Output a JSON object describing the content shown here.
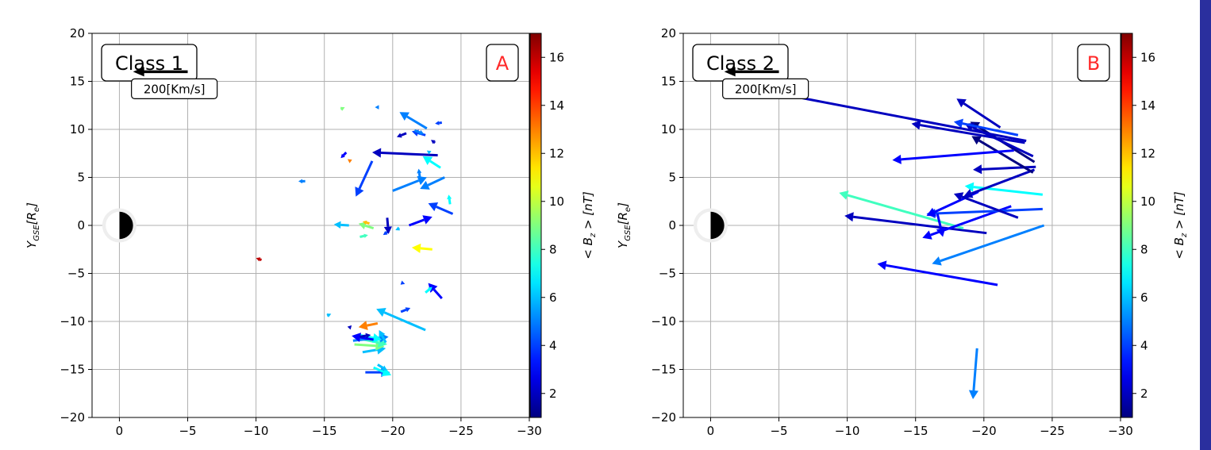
{
  "page": {
    "edge_color": "#2a2f9e"
  },
  "chart_data": [
    {
      "type": "scatter",
      "subtype": "quiver",
      "class_label": "Class 1",
      "panel_letter": "A",
      "ylabel": "Y_GSE[R_e]",
      "xlim": [
        2,
        -30
      ],
      "ylim": [
        20,
        -20
      ],
      "xticks": [
        0,
        -5,
        -10,
        -15,
        -20,
        -25,
        -30
      ],
      "yticks": [
        -20,
        -15,
        -10,
        -5,
        0,
        5,
        10,
        15,
        20
      ],
      "xtick_labels": [
        "0",
        "−5",
        "−10",
        "−15",
        "−20",
        "−25",
        "−30"
      ],
      "ytick_labels": [
        "−20",
        "−15",
        "−10",
        "−5",
        "0",
        "5",
        "10",
        "15",
        "20"
      ],
      "grid": true,
      "colorbar": {
        "label": "< B_z > [nT]",
        "range": [
          1,
          17
        ],
        "ticks": [
          2,
          4,
          6,
          8,
          10,
          12,
          14,
          16
        ],
        "tick_labels": [
          "2",
          "4",
          "6",
          "8",
          "10",
          "12",
          "14",
          "16"
        ],
        "colormap": "jet"
      },
      "reference_arrow": {
        "label": "200[Km/s]",
        "x0": -5,
        "x1": -1,
        "y": 16
      },
      "earth": {
        "x": 0,
        "y": 0,
        "radius": 1
      },
      "vectors": [
        {
          "x": -18.0,
          "y": -15.3,
          "x2": -19.8,
          "y2": -15.3,
          "bz": 4
        },
        {
          "x": -18.6,
          "y": -14.8,
          "x2": -19.9,
          "y2": -15.6,
          "bz": 7
        },
        {
          "x": -18.9,
          "y": -14.5,
          "x2": -19.6,
          "y2": -15.1,
          "bz": 6
        },
        {
          "x": -17.8,
          "y": -13.2,
          "x2": -19.5,
          "y2": -12.8,
          "bz": 6
        },
        {
          "x": -17.2,
          "y": -12.4,
          "x2": -19.4,
          "y2": -12.6,
          "bz": 9
        },
        {
          "x": -17.6,
          "y": -11.8,
          "x2": -19.6,
          "y2": -12.4,
          "bz": 8
        },
        {
          "x": -17.1,
          "y": -12.0,
          "x2": -19.7,
          "y2": -11.6,
          "bz": 5
        },
        {
          "x": -17.5,
          "y": -11.4,
          "x2": -19.2,
          "y2": -11.9,
          "bz": 7
        },
        {
          "x": -18.6,
          "y": -11.9,
          "x2": -17.0,
          "y2": -11.5,
          "bz": 3
        },
        {
          "x": -17.6,
          "y": -11.6,
          "x2": -18.4,
          "y2": -11.4,
          "bz": 2
        },
        {
          "x": -16.8,
          "y": -10.7,
          "x2": -17.0,
          "y2": -10.4,
          "bz": 2
        },
        {
          "x": -18.9,
          "y": -10.2,
          "x2": -17.5,
          "y2": -10.6,
          "bz": 13
        },
        {
          "x": -19.5,
          "y": -12.2,
          "x2": -19.0,
          "y2": -10.9,
          "bz": 6
        },
        {
          "x": -22.4,
          "y": -10.9,
          "x2": -18.8,
          "y2": -8.7,
          "bz": 6
        },
        {
          "x": -20.6,
          "y": -9.0,
          "x2": -21.3,
          "y2": -8.6,
          "bz": 4
        },
        {
          "x": -15.2,
          "y": -9.4,
          "x2": -15.5,
          "y2": -9.2,
          "bz": 6
        },
        {
          "x": -23.6,
          "y": -7.6,
          "x2": -22.6,
          "y2": -6.0,
          "bz": 3
        },
        {
          "x": -22.4,
          "y": -7.0,
          "x2": -22.9,
          "y2": -6.4,
          "bz": 7
        },
        {
          "x": -20.7,
          "y": -6.0,
          "x2": -20.9,
          "y2": -6.1,
          "bz": 4
        },
        {
          "x": -10.4,
          "y": -3.6,
          "x2": -10.0,
          "y2": -3.4,
          "bz": 16
        },
        {
          "x": -22.9,
          "y": -2.5,
          "x2": -21.4,
          "y2": -2.3,
          "bz": 11
        },
        {
          "x": -17.6,
          "y": -1.2,
          "x2": -18.2,
          "y2": -1.0,
          "bz": 8
        },
        {
          "x": -16.8,
          "y": 0.0,
          "x2": -15.7,
          "y2": 0.1,
          "bz": 6
        },
        {
          "x": -18.6,
          "y": -0.3,
          "x2": -17.5,
          "y2": 0.2,
          "bz": 9
        },
        {
          "x": -18.3,
          "y": 0.2,
          "x2": -17.8,
          "y2": 0.4,
          "bz": 12
        },
        {
          "x": -19.7,
          "y": -0.6,
          "x2": -19.3,
          "y2": -1.0,
          "bz": 4
        },
        {
          "x": -19.6,
          "y": 0.8,
          "x2": -19.7,
          "y2": -0.9,
          "bz": 2
        },
        {
          "x": -20.5,
          "y": -0.3,
          "x2": -20.2,
          "y2": -0.5,
          "bz": 6
        },
        {
          "x": -21.2,
          "y": 0.0,
          "x2": -22.9,
          "y2": 0.9,
          "bz": 3
        },
        {
          "x": -24.4,
          "y": 1.2,
          "x2": -22.6,
          "y2": 2.3,
          "bz": 4
        },
        {
          "x": -24.2,
          "y": 2.2,
          "x2": -24.1,
          "y2": 3.2,
          "bz": 7
        },
        {
          "x": -20.0,
          "y": 3.6,
          "x2": -22.5,
          "y2": 5.0,
          "bz": 5
        },
        {
          "x": -23.8,
          "y": 5.0,
          "x2": -22.0,
          "y2": 3.8,
          "bz": 5
        },
        {
          "x": -18.5,
          "y": 6.7,
          "x2": -17.3,
          "y2": 3.0,
          "bz": 4
        },
        {
          "x": -13.6,
          "y": 4.6,
          "x2": -13.1,
          "y2": 4.6,
          "bz": 5
        },
        {
          "x": -22.0,
          "y": 4.9,
          "x2": -21.9,
          "y2": 5.9,
          "bz": 5
        },
        {
          "x": -16.6,
          "y": 7.6,
          "x2": -16.2,
          "y2": 7.0,
          "bz": 3
        },
        {
          "x": -16.9,
          "y": 6.7,
          "x2": -16.7,
          "y2": 6.9,
          "bz": 13
        },
        {
          "x": -23.5,
          "y": 6.0,
          "x2": -22.2,
          "y2": 7.2,
          "bz": 7
        },
        {
          "x": -23.3,
          "y": 7.3,
          "x2": -18.5,
          "y2": 7.6,
          "bz": 2
        },
        {
          "x": -22.7,
          "y": 7.6,
          "x2": -22.5,
          "y2": 7.8,
          "bz": 6
        },
        {
          "x": -21.0,
          "y": 9.6,
          "x2": -20.3,
          "y2": 9.2,
          "bz": 2
        },
        {
          "x": -22.4,
          "y": 9.4,
          "x2": -21.4,
          "y2": 9.8,
          "bz": 4
        },
        {
          "x": -21.6,
          "y": 9.9,
          "x2": -22.3,
          "y2": 9.5,
          "bz": 5
        },
        {
          "x": -22.5,
          "y": 10.1,
          "x2": -20.5,
          "y2": 11.8,
          "bz": 5
        },
        {
          "x": -23.6,
          "y": 10.7,
          "x2": -23.1,
          "y2": 10.6,
          "bz": 4
        },
        {
          "x": -23.1,
          "y": 8.6,
          "x2": -22.8,
          "y2": 8.9,
          "bz": 2
        },
        {
          "x": -16.2,
          "y": 12.1,
          "x2": -16.5,
          "y2": 12.3,
          "bz": 9
        },
        {
          "x": -18.9,
          "y": 12.3,
          "x2": -18.7,
          "y2": 12.3,
          "bz": 5
        }
      ]
    },
    {
      "type": "scatter",
      "subtype": "quiver",
      "class_label": "Class 2",
      "panel_letter": "B",
      "ylabel": "Y_GSE[R_e]",
      "xlim": [
        2,
        -30
      ],
      "ylim": [
        20,
        -20
      ],
      "xticks": [
        0,
        -5,
        -10,
        -15,
        -20,
        -25,
        -30
      ],
      "yticks": [
        -20,
        -15,
        -10,
        -5,
        0,
        5,
        10,
        15,
        20
      ],
      "xtick_labels": [
        "0",
        "−5",
        "−10",
        "−15",
        "−20",
        "−25",
        "−30"
      ],
      "ytick_labels": [
        "−20",
        "−15",
        "−10",
        "−5",
        "0",
        "5",
        "10",
        "15",
        "20"
      ],
      "grid": true,
      "colorbar": {
        "label": "< B_z > [nT]",
        "range": [
          1,
          17
        ],
        "ticks": [
          2,
          4,
          6,
          8,
          10,
          12,
          14,
          16
        ],
        "tick_labels": [
          "2",
          "4",
          "6",
          "8",
          "10",
          "12",
          "14",
          "16"
        ],
        "colormap": "jet"
      },
      "reference_arrow": {
        "label": "200[Km/s]",
        "x0": -5,
        "x1": -1,
        "y": 16
      },
      "earth": {
        "x": 0,
        "y": 0,
        "radius": 1
      },
      "vectors": [
        {
          "x": -19.5,
          "y": -12.8,
          "x2": -19.2,
          "y2": -18.1,
          "bz": 5
        },
        {
          "x": -21.0,
          "y": -6.2,
          "x2": -12.2,
          "y2": -4.0,
          "bz": 3
        },
        {
          "x": -24.4,
          "y": 0.0,
          "x2": -16.2,
          "y2": -4.0,
          "bz": 5
        },
        {
          "x": -20.2,
          "y": -0.8,
          "x2": -9.8,
          "y2": 1.0,
          "bz": 2
        },
        {
          "x": -18.5,
          "y": -0.3,
          "x2": -9.4,
          "y2": 3.4,
          "bz": 8
        },
        {
          "x": -22.0,
          "y": 2.0,
          "x2": -15.5,
          "y2": -1.3,
          "bz": 3
        },
        {
          "x": -24.3,
          "y": 1.7,
          "x2": -15.8,
          "y2": 1.2,
          "bz": 4
        },
        {
          "x": -19.6,
          "y": 3.5,
          "x2": -15.8,
          "y2": 1.0,
          "bz": 3
        },
        {
          "x": -22.5,
          "y": 0.8,
          "x2": -17.8,
          "y2": 3.3,
          "bz": 2
        },
        {
          "x": -16.6,
          "y": 1.2,
          "x2": -17.0,
          "y2": -1.2,
          "bz": 3
        },
        {
          "x": -24.3,
          "y": 3.2,
          "x2": -18.6,
          "y2": 4.1,
          "bz": 7
        },
        {
          "x": -23.7,
          "y": 5.8,
          "x2": -18.5,
          "y2": 3.0,
          "bz": 2
        },
        {
          "x": -23.8,
          "y": 6.1,
          "x2": -19.2,
          "y2": 5.8,
          "bz": 2
        },
        {
          "x": -23.6,
          "y": 5.5,
          "x2": -19.1,
          "y2": 9.3,
          "bz": 1
        },
        {
          "x": -23.7,
          "y": 6.6,
          "x2": -19.0,
          "y2": 10.8,
          "bz": 1
        },
        {
          "x": -23.6,
          "y": 7.2,
          "x2": -18.6,
          "y2": 10.6,
          "bz": 2
        },
        {
          "x": -22.2,
          "y": 7.8,
          "x2": -13.3,
          "y2": 6.8,
          "bz": 3
        },
        {
          "x": -23.0,
          "y": 8.6,
          "x2": -14.7,
          "y2": 10.6,
          "bz": 2
        },
        {
          "x": -22.5,
          "y": 9.4,
          "x2": -17.8,
          "y2": 10.8,
          "bz": 4
        },
        {
          "x": -21.2,
          "y": 10.2,
          "x2": -18.0,
          "y2": 13.2,
          "bz": 2
        },
        {
          "x": -23.1,
          "y": 8.8,
          "x2": -3.6,
          "y2": 14.1,
          "bz": 2
        }
      ]
    }
  ]
}
